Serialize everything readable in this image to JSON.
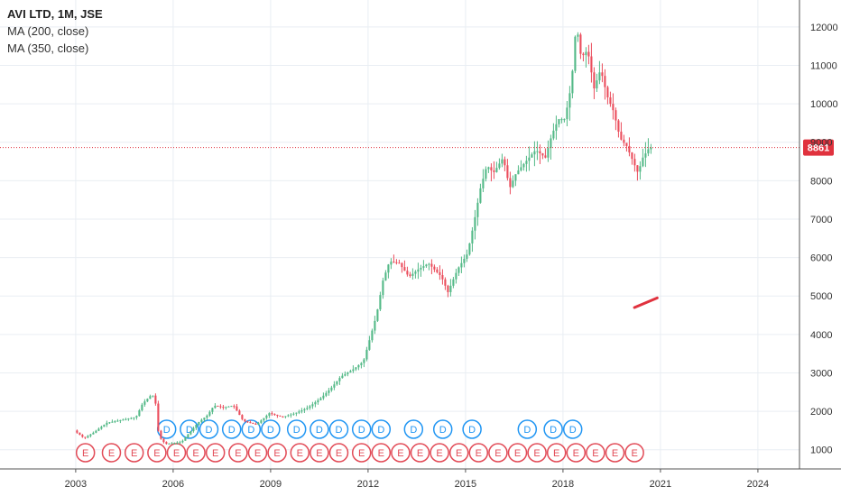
{
  "legend": {
    "symbol": "AVI LTD, 1M, JSE",
    "ma1": "MA (200, close)",
    "ma2": "MA (350, close)"
  },
  "colors": {
    "up": "#53b987",
    "down": "#eb4d5c",
    "grid": "#e9eef3",
    "price_line": "#e0323e",
    "event_d": "#2196f3",
    "event_e": "#e24b57"
  },
  "chart_data": {
    "type": "candlestick",
    "x_ticks": [
      "2003",
      "2006",
      "2009",
      "2012",
      "2015",
      "2018",
      "2021",
      "2024"
    ],
    "y_ticks": [
      "1000",
      "2000",
      "3000",
      "4000",
      "5000",
      "6000",
      "7000",
      "8000",
      "9000",
      "10000",
      "11000",
      "12000"
    ],
    "ylim": [
      500,
      12700
    ],
    "xlim": [
      2000.67,
      2025.28
    ],
    "last_price": 8861,
    "last_price_label": "8861",
    "price_path": [
      [
        2003.0,
        1500
      ],
      [
        2003.3,
        1300
      ],
      [
        2003.6,
        1450
      ],
      [
        2004.0,
        1700
      ],
      [
        2004.3,
        1750
      ],
      [
        2004.6,
        1800
      ],
      [
        2004.9,
        1850
      ],
      [
        2005.1,
        2200
      ],
      [
        2005.4,
        2450
      ],
      [
        2005.5,
        2200
      ],
      [
        2005.6,
        1350
      ],
      [
        2005.8,
        1150
      ],
      [
        2006.3,
        1200
      ],
      [
        2006.8,
        1700
      ],
      [
        2007.1,
        1900
      ],
      [
        2007.3,
        2150
      ],
      [
        2007.6,
        2100
      ],
      [
        2007.9,
        2150
      ],
      [
        2008.2,
        1750
      ],
      [
        2008.6,
        1650
      ],
      [
        2009.0,
        1950
      ],
      [
        2009.4,
        1850
      ],
      [
        2009.8,
        1950
      ],
      [
        2010.2,
        2100
      ],
      [
        2010.6,
        2350
      ],
      [
        2010.9,
        2600
      ],
      [
        2011.2,
        2900
      ],
      [
        2011.6,
        3100
      ],
      [
        2011.9,
        3300
      ],
      [
        2012.1,
        3900
      ],
      [
        2012.3,
        4500
      ],
      [
        2012.5,
        5400
      ],
      [
        2012.7,
        5900
      ],
      [
        2013.0,
        5850
      ],
      [
        2013.3,
        5500
      ],
      [
        2013.6,
        5700
      ],
      [
        2013.9,
        5850
      ],
      [
        2014.3,
        5500
      ],
      [
        2014.5,
        5100
      ],
      [
        2014.8,
        5700
      ],
      [
        2015.1,
        6100
      ],
      [
        2015.3,
        6900
      ],
      [
        2015.5,
        7800
      ],
      [
        2015.7,
        8400
      ],
      [
        2015.9,
        8200
      ],
      [
        2016.2,
        8600
      ],
      [
        2016.4,
        7800
      ],
      [
        2016.6,
        8200
      ],
      [
        2016.9,
        8500
      ],
      [
        2017.2,
        8800
      ],
      [
        2017.5,
        8600
      ],
      [
        2017.7,
        9200
      ],
      [
        2017.9,
        9600
      ],
      [
        2018.1,
        9600
      ],
      [
        2018.3,
        10500
      ],
      [
        2018.45,
        12100
      ],
      [
        2018.6,
        11200
      ],
      [
        2018.8,
        11400
      ],
      [
        2019.0,
        10400
      ],
      [
        2019.2,
        10900
      ],
      [
        2019.4,
        10200
      ],
      [
        2019.6,
        9800
      ],
      [
        2019.8,
        9100
      ],
      [
        2020.0,
        8900
      ],
      [
        2020.2,
        8500
      ],
      [
        2020.35,
        8200
      ],
      [
        2020.5,
        8600
      ],
      [
        2020.7,
        8861
      ]
    ],
    "ma_segment": [
      [
        2020.2,
        4700
      ],
      [
        2020.9,
        4950
      ]
    ],
    "events_d_x": [
      2005.8,
      2006.5,
      2007.1,
      2007.8,
      2008.4,
      2009.0,
      2009.8,
      2010.5,
      2011.1,
      2011.8,
      2012.4,
      2013.4,
      2014.3,
      2015.2,
      2016.9,
      2017.7,
      2018.3
    ],
    "events_e_x": [
      2003.3,
      2004.1,
      2004.8,
      2005.5,
      2006.1,
      2006.7,
      2007.3,
      2008.0,
      2008.6,
      2009.2,
      2009.9,
      2010.5,
      2011.1,
      2011.8,
      2012.4,
      2013.0,
      2013.6,
      2014.2,
      2014.8,
      2015.4,
      2016.0,
      2016.6,
      2017.2,
      2017.8,
      2018.4,
      2019.0,
      2019.6,
      2020.2
    ],
    "event_d_label": "D",
    "event_e_label": "E"
  }
}
